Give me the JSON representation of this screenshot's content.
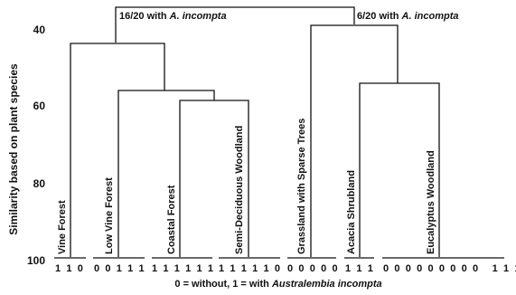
{
  "diagram": {
    "ylabel": "Similarity based on plant species",
    "y_ticks": [
      "40",
      "60",
      "80",
      "100"
    ],
    "xlabel_prefix": "0 = without, 1 = with ",
    "xlabel_species": "Australembia incompta",
    "top_left_note_prefix": "16/20 with ",
    "top_left_note_species": "A. incompta",
    "top_right_note_prefix": "6/20 with ",
    "top_right_note_species": "A. incompta",
    "leaves": [
      {
        "label": "Vine Forest",
        "codes": "1 1 0"
      },
      {
        "label": "Low Vine Forest",
        "codes": "0 0 1 1 1"
      },
      {
        "label": "Coastal Forest",
        "codes": "1 1 1 1 1 1"
      },
      {
        "label": "Semi-Deciduous Woodland",
        "codes": "1 1 1 1 1 0"
      },
      {
        "label": "Grassland with Sparse Trees",
        "codes": "0 0 0 0 0"
      },
      {
        "label": "Acacia Shrubland",
        "codes": "1 1 1"
      },
      {
        "label": "Eucalyptus Woodland",
        "codes": "0 0 0 0 0 0 0 0 0   1 1 1"
      }
    ]
  }
}
